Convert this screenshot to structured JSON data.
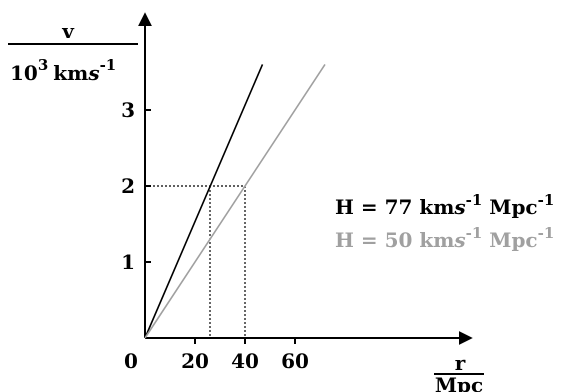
{
  "chart_data": {
    "type": "line",
    "title": "",
    "ylabel": {
      "numerator": "v",
      "denominator_base": "10",
      "denominator_exp": "3",
      "denominator_unit": "km",
      "denominator_unit_italic": "s",
      "denominator_unit_exp": "-1"
    },
    "xlabel": {
      "numerator": "r",
      "denominator": "Mpc"
    },
    "xlim": [
      0,
      80
    ],
    "ylim": [
      0,
      4
    ],
    "x_ticks": [
      0,
      20,
      40,
      60
    ],
    "y_ticks": [
      1,
      2,
      3
    ],
    "grid": false,
    "series": [
      {
        "color": "#000000",
        "x": [
          0,
          47
        ],
        "y": [
          0,
          3.6
        ],
        "legend": {
          "prefix": "H = 77 km",
          "italic": "s",
          "exp1": "-1",
          "mid": " Mpc",
          "exp2": "-1"
        }
      },
      {
        "color": "#a0a0a0",
        "x": [
          0,
          72
        ],
        "y": [
          0,
          3.6
        ],
        "legend": {
          "prefix": "H = 50 km",
          "italic": "s",
          "exp1": "-1",
          "mid": " Mpc",
          "exp2": "-1"
        }
      }
    ],
    "reference_lines": [
      {
        "x": 26,
        "y": 2
      },
      {
        "x": 40,
        "y": 2
      }
    ]
  }
}
